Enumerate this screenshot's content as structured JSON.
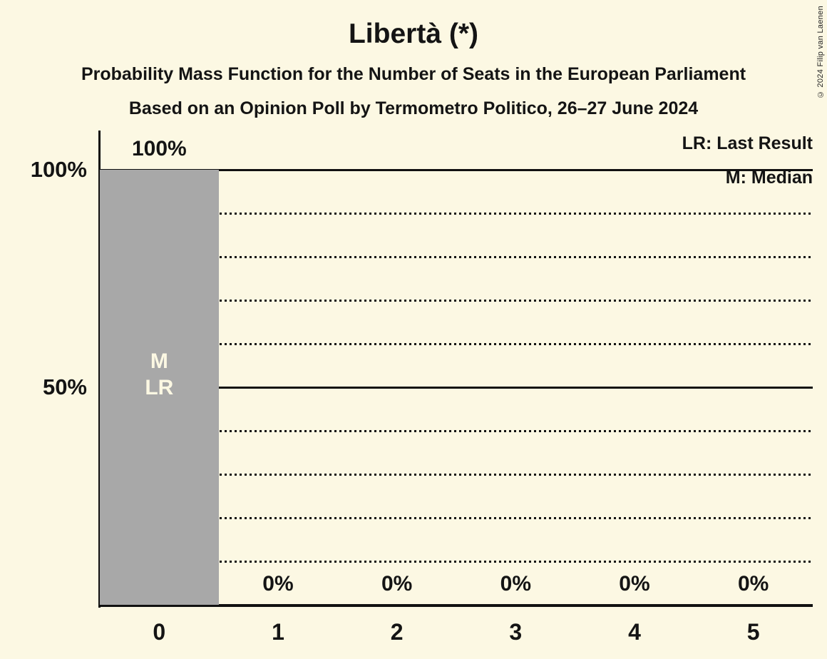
{
  "title": "Libertà (*)",
  "subtitles": [
    "Probability Mass Function for the Number of Seats in the European Parliament",
    "Based on an Opinion Poll by Termometro Politico, 26–27 June 2024"
  ],
  "legend": {
    "last_result": "LR: Last Result",
    "median": "M: Median"
  },
  "copyright": "© 2024 Filip van Laenen",
  "colors": {
    "background": "#FCF8E3",
    "bar": "#A8A8A8",
    "line": "#111111",
    "text": "#141414"
  },
  "chart_data": {
    "type": "bar",
    "title": "Libertà (*)",
    "categories": [
      "0",
      "1",
      "2",
      "3",
      "4",
      "5"
    ],
    "values": [
      100,
      0,
      0,
      0,
      0,
      0
    ],
    "value_labels": [
      "100%",
      "0%",
      "0%",
      "0%",
      "0%",
      "0%"
    ],
    "ylim": [
      0,
      100
    ],
    "yticks": [
      {
        "value": 100,
        "label": "100%"
      },
      {
        "value": 50,
        "label": "50%"
      }
    ],
    "solid_gridlines": [
      100,
      50
    ],
    "dotted_gridlines": [
      90,
      80,
      70,
      60,
      40,
      30,
      20,
      10
    ],
    "grid": "horizontal",
    "legend_position": "top-right",
    "annotations": [
      {
        "bar": 0,
        "lines": [
          "M",
          "LR"
        ],
        "meaning": [
          "Median",
          "Last Result"
        ]
      }
    ]
  }
}
